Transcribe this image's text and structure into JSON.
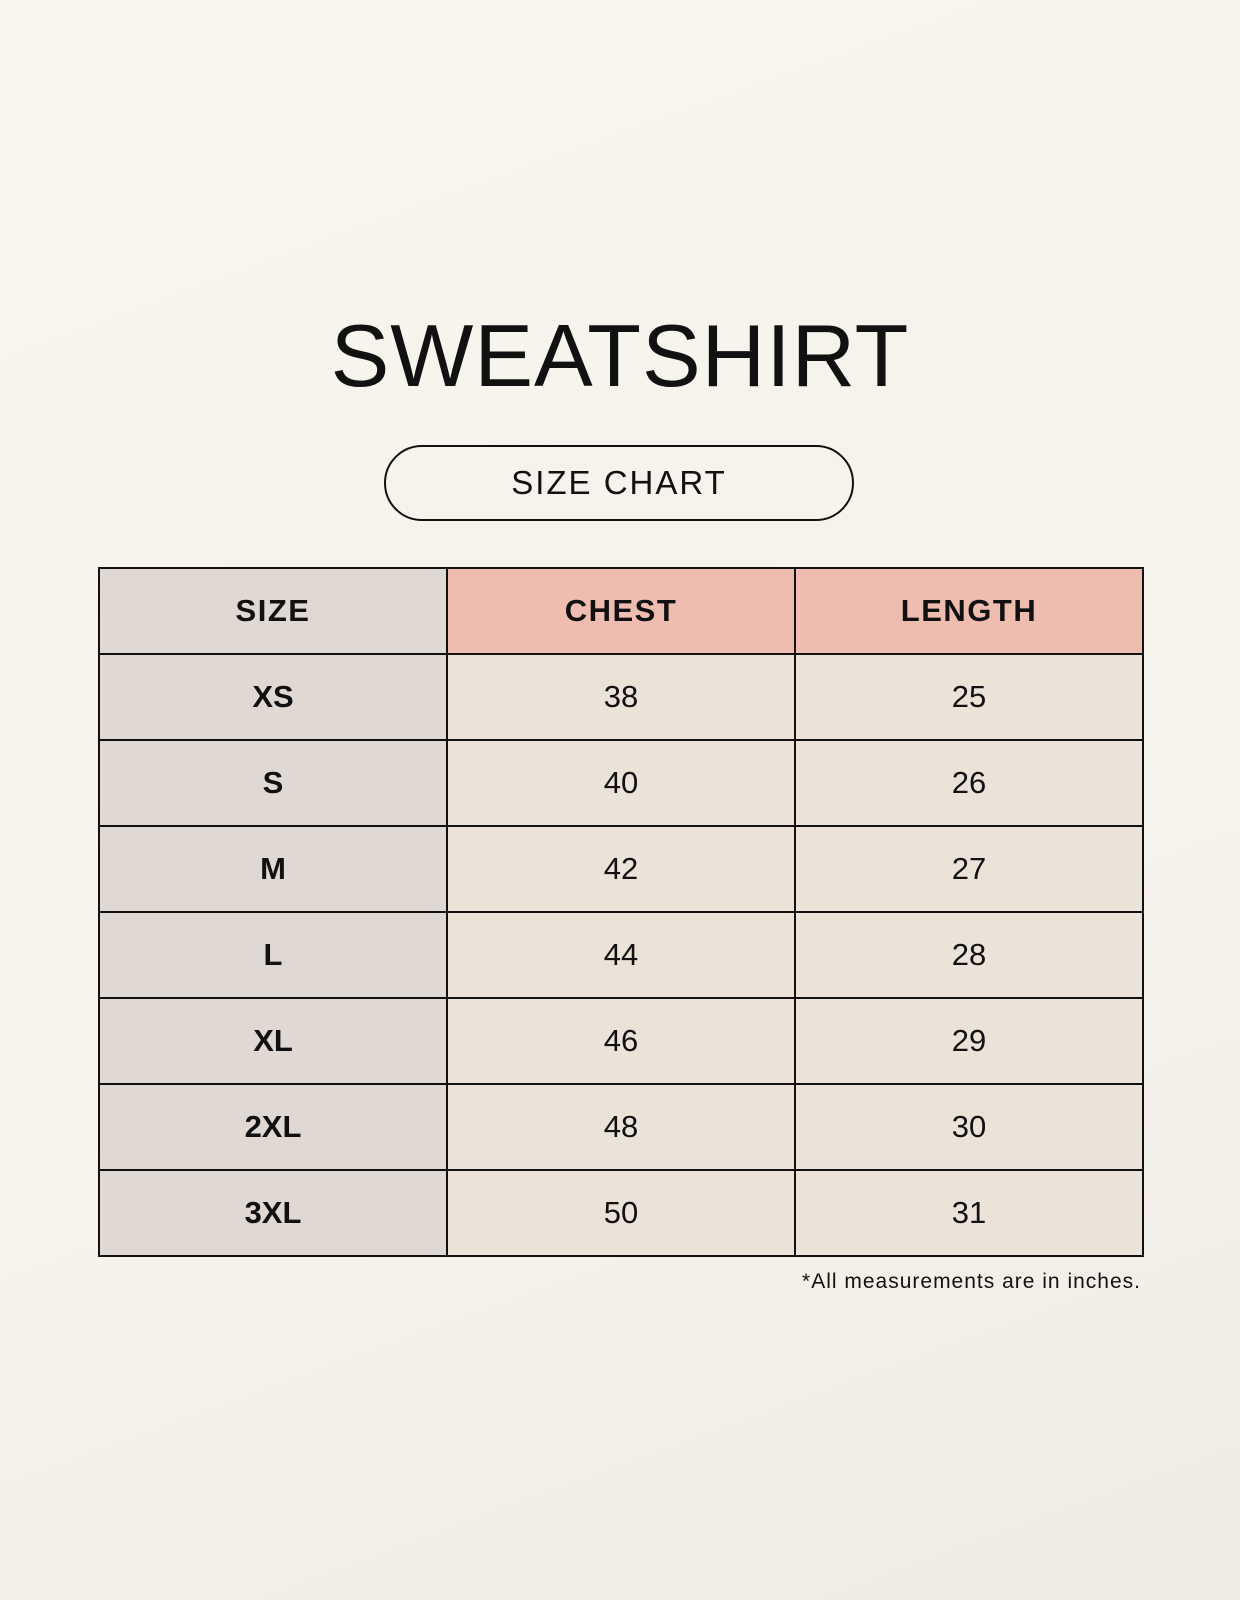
{
  "title": "SWEATSHIRT",
  "subtitle": "SIZE CHART",
  "table": {
    "headers": [
      "SIZE",
      "CHEST",
      "LENGTH"
    ],
    "rows": [
      [
        "XS",
        "38",
        "25"
      ],
      [
        "S",
        "40",
        "26"
      ],
      [
        "M",
        "42",
        "27"
      ],
      [
        "L",
        "44",
        "28"
      ],
      [
        "XL",
        "46",
        "29"
      ],
      [
        "2XL",
        "48",
        "30"
      ],
      [
        "3XL",
        "50",
        "31"
      ]
    ]
  },
  "note": "*All measurements are in inches.",
  "colors": {
    "header_accent": "#efbdb0",
    "size_column": "#e0d8d2",
    "cell": "#ebe2d8"
  }
}
